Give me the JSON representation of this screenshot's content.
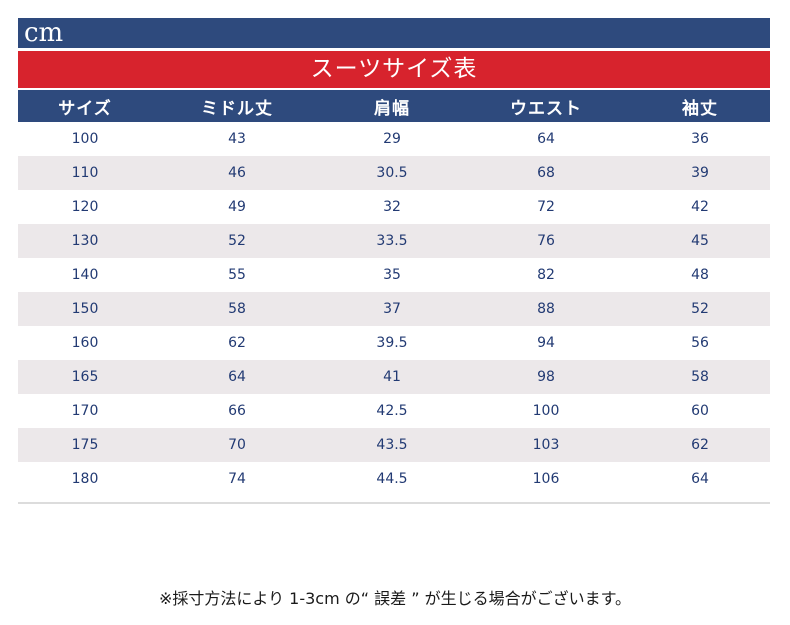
{
  "unit": "cm",
  "title": "スーツサイズ表",
  "headers": [
    "サイズ",
    "ミドル丈",
    "肩幅",
    "ウエスト",
    "袖丈"
  ],
  "rows": [
    [
      "100",
      "43",
      "29",
      "64",
      "36"
    ],
    [
      "110",
      "46",
      "30.5",
      "68",
      "39"
    ],
    [
      "120",
      "49",
      "32",
      "72",
      "42"
    ],
    [
      "130",
      "52",
      "33.5",
      "76",
      "45"
    ],
    [
      "140",
      "55",
      "35",
      "82",
      "48"
    ],
    [
      "150",
      "58",
      "37",
      "88",
      "52"
    ],
    [
      "160",
      "62",
      "39.5",
      "94",
      "56"
    ],
    [
      "165",
      "64",
      "41",
      "98",
      "58"
    ],
    [
      "170",
      "66",
      "42.5",
      "100",
      "60"
    ],
    [
      "175",
      "70",
      "43.5",
      "103",
      "62"
    ],
    [
      "180",
      "74",
      "44.5",
      "106",
      "64"
    ]
  ],
  "note": "※採寸方法により 1-3cm の“ 誤差 ” が生じる場合がございます。",
  "colors": {
    "header_blue": "#2e4a7d",
    "title_red": "#d7232d",
    "alt_row": "#ece8ea",
    "text_navy": "#223a73"
  }
}
